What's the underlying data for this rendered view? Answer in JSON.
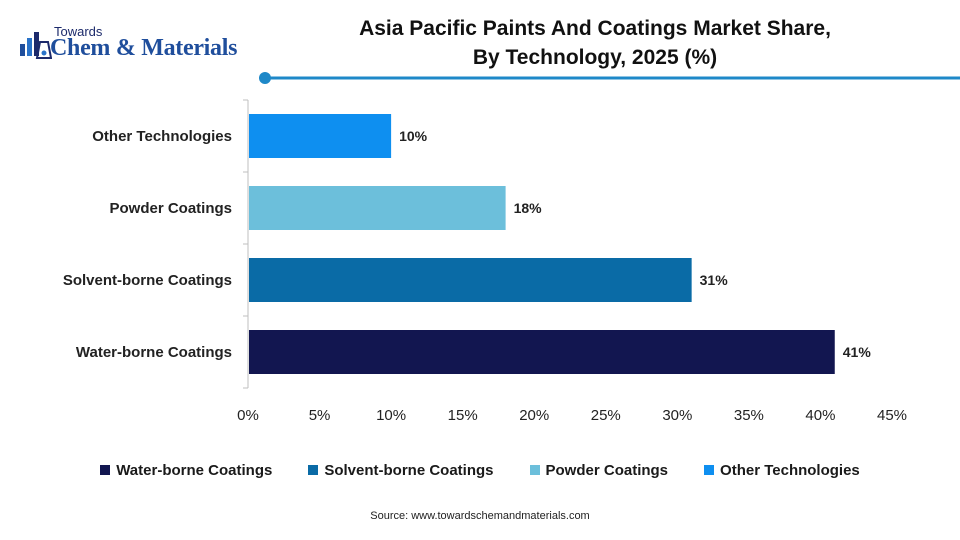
{
  "logo": {
    "top_text": "Towards",
    "main_text": "Chem & Materials"
  },
  "title_lines": [
    "Asia Pacific Paints And Coatings Market Share,",
    "By Technology, 2025 (%)"
  ],
  "colors": {
    "accent_line": "#1e88c8",
    "dot": "#1e88c8"
  },
  "chart_data": {
    "type": "bar",
    "orientation": "horizontal",
    "categories": [
      "Water-borne Coatings",
      "Solvent-borne Coatings",
      "Powder Coatings",
      "Other Technologies"
    ],
    "values": [
      41,
      31,
      18,
      10
    ],
    "data_labels": [
      "41%",
      "31%",
      "18%",
      "10%"
    ],
    "colors": [
      "#121650",
      "#0a6ba6",
      "#6cbfdb",
      "#0e8ff0"
    ],
    "xlim": [
      0,
      45
    ],
    "xticks": [
      0,
      5,
      10,
      15,
      20,
      25,
      30,
      35,
      40,
      45
    ],
    "xtick_labels": [
      "0%",
      "5%",
      "10%",
      "15%",
      "20%",
      "25%",
      "30%",
      "35%",
      "40%",
      "45%"
    ],
    "grid": false,
    "legend_position": "bottom"
  },
  "legend": [
    {
      "label": "Water-borne Coatings",
      "color": "#121650"
    },
    {
      "label": "Solvent-borne Coatings",
      "color": "#0a6ba6"
    },
    {
      "label": "Powder Coatings",
      "color": "#6cbfdb"
    },
    {
      "label": "Other Technologies",
      "color": "#0e8ff0"
    }
  ],
  "source": "Source:  www.towardschemandmaterials.com"
}
